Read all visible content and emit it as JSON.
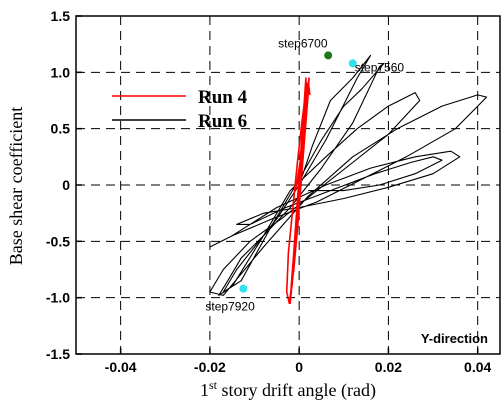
{
  "chart_data": {
    "type": "line",
    "xlabel_prefix": "1",
    "xlabel_sup": "st",
    "xlabel_rest": " story drift angle (rad)",
    "ylabel": "Base shear coefficient",
    "xlim": [
      -0.05,
      0.045
    ],
    "ylim": [
      -1.5,
      1.5
    ],
    "x_ticks": [
      -0.04,
      -0.02,
      0,
      0.02,
      0.04
    ],
    "x_tick_labels": [
      "-0.04",
      "-0.02",
      "0",
      "0.02",
      "0.04"
    ],
    "y_ticks": [
      -1.5,
      -1.0,
      -0.5,
      0,
      0.5,
      1.0,
      1.5
    ],
    "y_tick_labels": [
      "-1.5",
      "-1.0",
      "-0.5",
      "0",
      "0.5",
      "1.0",
      "1.5"
    ],
    "grid": true,
    "legend_position": "top-left",
    "corner_label": "Y-direction",
    "series": [
      {
        "name": "Run 4",
        "color": "#ff0000",
        "x": [
          -0.0008,
          0.0008,
          0.0016,
          0.0015,
          0.0009,
          0.0002,
          -0.0005,
          -0.0012,
          -0.0016,
          -0.0012,
          -0.0004,
          0.0005,
          0.0013,
          0.0018,
          0.0017,
          0.001,
          0.0002,
          -0.0006,
          -0.0014,
          -0.002,
          -0.0017,
          -0.0009,
          0.0,
          0.0009,
          0.0016,
          0.0022,
          0.002,
          0.0012,
          0.0004,
          -0.0004,
          -0.0012,
          -0.0022,
          -0.0028,
          -0.0024,
          -0.0014,
          -0.0004,
          0.0006,
          0.0014,
          0.0021,
          0.0024
        ],
        "y": [
          -0.05,
          0.35,
          0.8,
          0.95,
          0.6,
          0.2,
          -0.2,
          -0.6,
          -0.9,
          -0.7,
          -0.3,
          0.1,
          0.55,
          0.9,
          0.75,
          0.35,
          -0.05,
          -0.45,
          -0.8,
          -1.05,
          -0.85,
          -0.45,
          -0.05,
          0.4,
          0.75,
          0.95,
          0.8,
          0.4,
          0.0,
          -0.4,
          -0.75,
          -1.05,
          -0.95,
          -0.6,
          -0.2,
          0.2,
          0.55,
          0.8,
          0.9,
          0.8
        ]
      },
      {
        "name": "Run 6",
        "color": "#000000",
        "x": [
          0.0,
          0.003,
          0.007,
          0.012,
          0.016,
          0.013,
          0.006,
          0.0,
          -0.005,
          -0.01,
          -0.014,
          -0.017,
          -0.013,
          -0.006,
          0.0,
          0.005,
          0.01,
          0.014,
          0.019,
          0.018,
          0.012,
          0.005,
          -0.002,
          -0.008,
          -0.013,
          -0.016,
          -0.018,
          -0.015,
          -0.008,
          -0.002,
          0.006,
          0.013,
          0.02,
          0.026,
          0.027,
          0.02,
          0.012,
          0.004,
          -0.004,
          -0.011,
          -0.017,
          -0.02,
          -0.017,
          -0.008,
          0.002,
          0.012,
          0.022,
          0.032,
          0.04,
          0.042,
          0.035,
          0.024,
          0.014,
          0.004,
          -0.006,
          -0.015,
          -0.02,
          -0.015,
          -0.005,
          0.006,
          0.016,
          0.026,
          0.034,
          0.036,
          0.03,
          0.02,
          0.01,
          0.0,
          -0.008,
          -0.014,
          -0.011,
          -0.003,
          0.007,
          0.017,
          0.025,
          0.03,
          0.032,
          0.026,
          0.018,
          0.01,
          0.002
        ],
        "y": [
          0.0,
          0.35,
          0.75,
          0.95,
          1.15,
          0.95,
          0.4,
          0.0,
          -0.3,
          -0.55,
          -0.75,
          -0.95,
          -0.85,
          -0.35,
          0.05,
          0.4,
          0.7,
          0.85,
          1.08,
          1.05,
          0.55,
          0.15,
          -0.2,
          -0.45,
          -0.65,
          -0.85,
          -0.98,
          -0.9,
          -0.45,
          -0.05,
          0.25,
          0.5,
          0.7,
          0.82,
          0.75,
          0.45,
          0.2,
          -0.05,
          -0.3,
          -0.5,
          -0.75,
          -0.95,
          -0.98,
          -0.55,
          -0.1,
          0.25,
          0.5,
          0.7,
          0.8,
          0.78,
          0.5,
          0.25,
          0.05,
          -0.15,
          -0.3,
          -0.45,
          -0.55,
          -0.45,
          -0.2,
          0.0,
          0.15,
          0.25,
          0.3,
          0.25,
          0.1,
          -0.02,
          -0.12,
          -0.2,
          -0.25,
          -0.35,
          -0.35,
          -0.2,
          -0.05,
          0.1,
          0.2,
          0.25,
          0.22,
          0.1,
          0.0,
          -0.05,
          -0.05
        ]
      }
    ],
    "annotations": [
      {
        "text": "step6700",
        "x": 0.0065,
        "y": 1.15,
        "color": "#1a7a1a"
      },
      {
        "text": "step7560",
        "x": 0.012,
        "y": 1.08,
        "color": "#33e0ee"
      },
      {
        "text": "step7920",
        "x": -0.0125,
        "y": -0.92,
        "color": "#33e0ee"
      }
    ]
  }
}
